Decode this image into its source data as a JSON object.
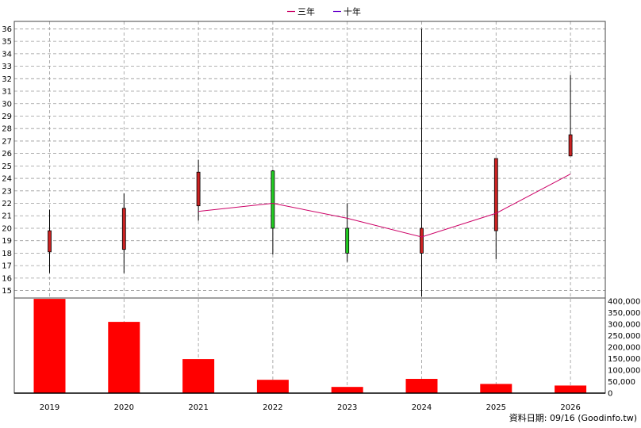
{
  "chart_data": {
    "type": "candlestick+bar",
    "categories": [
      "2019",
      "2020",
      "2021",
      "2022",
      "2023",
      "2024",
      "2025",
      "2026"
    ],
    "candles": [
      {
        "year": "2019",
        "open": 18.1,
        "close": 19.8,
        "high": 21.5,
        "low": 16.4
      },
      {
        "year": "2020",
        "open": 18.3,
        "close": 21.6,
        "high": 22.8,
        "low": 16.4
      },
      {
        "year": "2021",
        "open": 21.8,
        "close": 24.5,
        "high": 25.5,
        "low": 20.6
      },
      {
        "year": "2022",
        "open": 24.6,
        "close": 20.0,
        "high": 24.7,
        "low": 17.9
      },
      {
        "year": "2023",
        "open": 20.0,
        "close": 18.0,
        "high": 22.0,
        "low": 17.3
      },
      {
        "year": "2024",
        "open": 18.0,
        "close": 20.0,
        "high": 36.0,
        "low": 14.5
      },
      {
        "year": "2025",
        "open": 19.8,
        "close": 25.6,
        "high": 25.6,
        "low": 17.5
      },
      {
        "year": "2026",
        "open": 25.8,
        "close": 27.5,
        "high": 32.3,
        "low": 25.8
      }
    ],
    "series": [
      {
        "name": "三年",
        "color": "#cc0066",
        "values": [
          null,
          null,
          21.35,
          22.0,
          20.8,
          19.3,
          21.2,
          24.35
        ]
      },
      {
        "name": "十年",
        "color": "#6600cc",
        "values": [
          null,
          null,
          null,
          null,
          null,
          null,
          null,
          null
        ]
      }
    ],
    "volume": {
      "values": [
        410000,
        310000,
        148000,
        58000,
        27000,
        62000,
        40000,
        33000
      ],
      "ticks": [
        "400,000",
        "350,000",
        "300,000",
        "250,000",
        "200,000",
        "150,000",
        "100,000",
        "50,000",
        "0"
      ],
      "ylim": [
        0,
        400000
      ],
      "color": "#ff0000"
    },
    "price_ticks": [
      "36",
      "35",
      "34",
      "33",
      "32",
      "31",
      "30",
      "29",
      "28",
      "27",
      "26",
      "25",
      "24",
      "23",
      "22",
      "21",
      "20",
      "19",
      "18",
      "17",
      "16",
      "15"
    ],
    "ylim": [
      14.4,
      36.6
    ],
    "up_color": "#cc2222",
    "down_color": "#22cc22",
    "grid": true,
    "legend_position": "top-center"
  },
  "footer": {
    "text": "資料日期: 09/16  (Goodinfo.tw)"
  }
}
